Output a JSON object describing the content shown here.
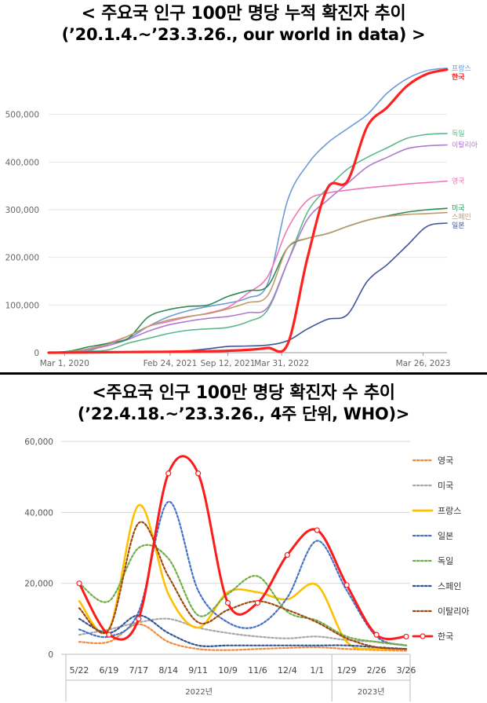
{
  "top": {
    "title_line1": "< 주요국 인구 100만 명당 누적 확진자 추이",
    "title_line2": "(’20.1.4.~’23.3.26., our world in data) >"
  },
  "bottom": {
    "title_line1": "<주요국 인구 100만 명당 확진자 수 추이",
    "title_line2": "(’22.4.18.~’23.3.26., 4주 단위, WHO)>"
  },
  "chart_data": [
    {
      "type": "line",
      "title": "< 주요국 인구 100만 명당 누적 확진자 추이",
      "subtitle": "(’20.1.4.~’23.3.26., our world in data) >",
      "xlabel": "",
      "ylabel": "",
      "x_ticks": [
        "Mar 1, 2020",
        "Feb 24, 2021",
        "Sep 12, 2021",
        "Mar 31, 2022",
        "Mar 26, 2023"
      ],
      "x_tick_pos": [
        0.04,
        0.305,
        0.45,
        0.585,
        0.94
      ],
      "y_ticks": [
        "0",
        "100,000",
        "200,000",
        "300,000",
        "400,000",
        "500,000"
      ],
      "ylim": [
        0,
        600000
      ],
      "grid": true,
      "legend": "end-of-line labels",
      "x": [
        0,
        0.05,
        0.1,
        0.15,
        0.2,
        0.25,
        0.3,
        0.35,
        0.4,
        0.45,
        0.5,
        0.55,
        0.6,
        0.65,
        0.7,
        0.75,
        0.8,
        0.85,
        0.9,
        0.95,
        1.0
      ],
      "series": [
        {
          "name": "프랑스",
          "color": "#6b9bd8",
          "width": 1.6,
          "values": [
            0,
            1000,
            4000,
            18000,
            30000,
            55000,
            75000,
            88000,
            97000,
            104000,
            115000,
            145000,
            320000,
            395000,
            440000,
            470000,
            500000,
            545000,
            575000,
            592000,
            597000
          ]
        },
        {
          "name": "한국",
          "color": "#ff2020",
          "width": 3.2,
          "values": [
            0,
            300,
            600,
            1000,
            1300,
            1600,
            2000,
            2500,
            3000,
            4000,
            6000,
            10000,
            18000,
            200000,
            345000,
            360000,
            475000,
            515000,
            560000,
            585000,
            594000
          ]
        },
        {
          "name": "독일",
          "color": "#5cb98a",
          "width": 1.6,
          "values": [
            0,
            1000,
            3000,
            6000,
            20000,
            30000,
            40000,
            47000,
            50000,
            53000,
            65000,
            90000,
            190000,
            295000,
            345000,
            385000,
            410000,
            430000,
            450000,
            458000,
            460000
          ]
        },
        {
          "name": "이탈리아",
          "color": "#b07ad1",
          "width": 1.6,
          "values": [
            0,
            1000,
            6000,
            15000,
            28000,
            45000,
            58000,
            66000,
            72000,
            76000,
            84000,
            95000,
            190000,
            280000,
            320000,
            355000,
            390000,
            410000,
            428000,
            434000,
            436000
          ]
        },
        {
          "name": "영국",
          "color": "#ef77b9",
          "width": 1.6,
          "values": [
            0,
            2000,
            8000,
            20000,
            35000,
            55000,
            65000,
            75000,
            83000,
            95000,
            125000,
            160000,
            260000,
            320000,
            335000,
            341000,
            346000,
            350000,
            354000,
            357000,
            360000
          ]
        },
        {
          "name": "미국",
          "color": "#2e8b57",
          "width": 1.6,
          "values": [
            0,
            3000,
            12000,
            20000,
            30000,
            75000,
            90000,
            97000,
            100000,
            118000,
            130000,
            140000,
            220000,
            240000,
            250000,
            265000,
            278000,
            287000,
            295000,
            300000,
            303000
          ]
        },
        {
          "name": "스페인",
          "color": "#c09a6b",
          "width": 1.6,
          "values": [
            0,
            2000,
            8000,
            18000,
            35000,
            55000,
            68000,
            76000,
            82000,
            92000,
            105000,
            120000,
            220000,
            240000,
            250000,
            265000,
            278000,
            286000,
            290000,
            292000,
            294000
          ]
        },
        {
          "name": "일본",
          "color": "#40549a",
          "width": 1.6,
          "values": [
            0,
            100,
            300,
            500,
            800,
            1500,
            2500,
            4000,
            8000,
            13000,
            14000,
            16000,
            25000,
            50000,
            70000,
            80000,
            150000,
            185000,
            225000,
            265000,
            272000
          ]
        }
      ]
    },
    {
      "type": "line",
      "title": "<주요국 인구 100만 명당 확진자 수 추이",
      "subtitle": "(’22.4.18.~’23.3.26., 4주 단위, WHO)>",
      "xlabel": "",
      "ylabel": "",
      "categories": [
        "5/22",
        "6/19",
        "7/17",
        "8/14",
        "9/11",
        "10/9",
        "11/6",
        "12/4",
        "1/1",
        "1/29",
        "2/26",
        "3/26"
      ],
      "year_labels": [
        "2022년",
        "2023년"
      ],
      "y_ticks": [
        "0",
        "20,000",
        "40,000",
        "60,000"
      ],
      "ylim": [
        0,
        60000
      ],
      "grid": true,
      "legend": "right",
      "series": [
        {
          "name": "영국",
          "color": "#f08a3c",
          "style": "dotted",
          "marker": false,
          "values": [
            3500,
            3500,
            8500,
            3500,
            1500,
            1200,
            1500,
            1800,
            2000,
            1500,
            1200,
            1000
          ]
        },
        {
          "name": "미국",
          "color": "#a8a8a8",
          "style": "dotted",
          "marker": false,
          "values": [
            5500,
            7000,
            9000,
            10000,
            7500,
            6000,
            5000,
            4500,
            5000,
            4000,
            3500,
            2500
          ]
        },
        {
          "name": "프랑스",
          "color": "#ffc000",
          "style": "solid",
          "marker": false,
          "values": [
            15000,
            7000,
            42000,
            17000,
            7500,
            17500,
            17500,
            15500,
            19500,
            3500,
            1500,
            1500
          ]
        },
        {
          "name": "일본",
          "color": "#4472c4",
          "style": "dotted",
          "marker": false,
          "values": [
            7000,
            5000,
            12000,
            43000,
            18000,
            9000,
            8000,
            16000,
            32000,
            18000,
            5000,
            2500
          ]
        },
        {
          "name": "독일",
          "color": "#70ad47",
          "style": "dotted",
          "marker": false,
          "values": [
            20000,
            15000,
            30000,
            27000,
            11000,
            17000,
            22000,
            12000,
            9500,
            5000,
            3500,
            2500
          ]
        },
        {
          "name": "스페인",
          "color": "#2f5597",
          "style": "dotted",
          "marker": false,
          "values": [
            10000,
            6000,
            11000,
            6000,
            2500,
            2500,
            2500,
            2500,
            2500,
            2500,
            2000,
            1500
          ]
        },
        {
          "name": "이탈리아",
          "color": "#9e480e",
          "style": "dotted",
          "marker": false,
          "values": [
            13000,
            7000,
            37000,
            22000,
            9000,
            12500,
            15000,
            12500,
            9000,
            4500,
            2000,
            1500
          ]
        },
        {
          "name": "한국",
          "color": "#ff1a1a",
          "style": "solid",
          "marker": true,
          "values": [
            20000,
            5500,
            10000,
            51000,
            51000,
            14500,
            14500,
            28000,
            35000,
            19500,
            5500,
            5000
          ]
        }
      ]
    }
  ]
}
